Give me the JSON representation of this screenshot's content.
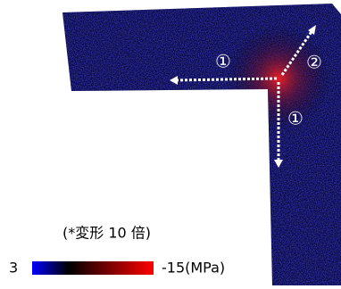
{
  "labels": {
    "arm_h": "①",
    "diag": "②",
    "arm_v": "①"
  },
  "note": "(*変形 10 倍)",
  "colorbar": {
    "min_label": "3",
    "max_label": "-15(MPa)"
  }
}
